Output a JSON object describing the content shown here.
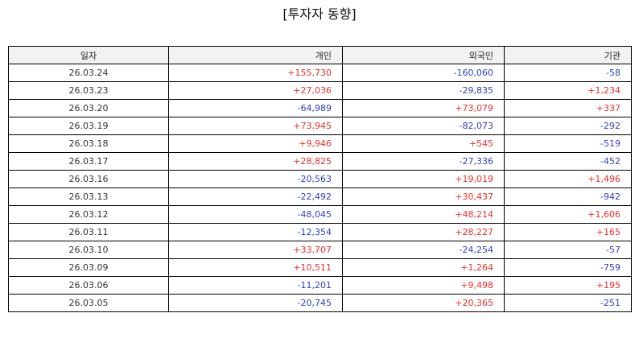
{
  "title": "[투자자 동향]",
  "colors": {
    "positive": "#e8302c",
    "negative": "#2f3ec4",
    "header_bg": "#f2f2f2"
  },
  "table": {
    "headers": [
      "일자",
      "개인",
      "외국인",
      "기관"
    ],
    "rows": [
      {
        "date": "26.03.24",
        "individual": "+155,730",
        "foreign": "-160,060",
        "institution": "-58"
      },
      {
        "date": "26.03.23",
        "individual": "+27,036",
        "foreign": "-29,835",
        "institution": "+1,234"
      },
      {
        "date": "26.03.20",
        "individual": "-64,989",
        "foreign": "+73,079",
        "institution": "+337"
      },
      {
        "date": "26.03.19",
        "individual": "+73,945",
        "foreign": "-82,073",
        "institution": "-292"
      },
      {
        "date": "26.03.18",
        "individual": "+9,946",
        "foreign": "+545",
        "institution": "-519"
      },
      {
        "date": "26.03.17",
        "individual": "+28,825",
        "foreign": "-27,336",
        "institution": "-452"
      },
      {
        "date": "26.03.16",
        "individual": "-20,563",
        "foreign": "+19,019",
        "institution": "+1,496"
      },
      {
        "date": "26.03.13",
        "individual": "-22,492",
        "foreign": "+30,437",
        "institution": "-942"
      },
      {
        "date": "26.03.12",
        "individual": "-48,045",
        "foreign": "+48,214",
        "institution": "+1,606"
      },
      {
        "date": "26.03.11",
        "individual": "-12,354",
        "foreign": "+28,227",
        "institution": "+165"
      },
      {
        "date": "26.03.10",
        "individual": "+33,707",
        "foreign": "-24,254",
        "institution": "-57"
      },
      {
        "date": "26.03.09",
        "individual": "+10,511",
        "foreign": "+1,264",
        "institution": "-759"
      },
      {
        "date": "26.03.06",
        "individual": "-11,201",
        "foreign": "+9,498",
        "institution": "+195"
      },
      {
        "date": "26.03.05",
        "individual": "-20,745",
        "foreign": "+20,365",
        "institution": "-251"
      }
    ]
  }
}
